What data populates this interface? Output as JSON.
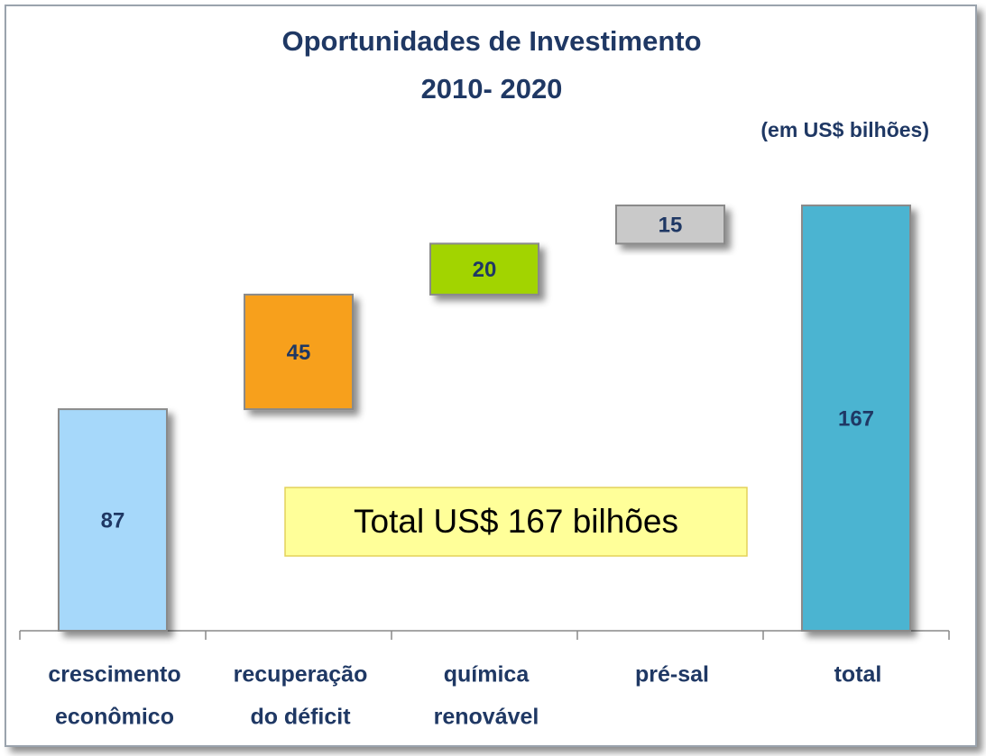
{
  "chart_data": {
    "type": "waterfall",
    "title": [
      "Oportunidades de Investimento",
      "2010- 2020"
    ],
    "subtitle": "(em US$ bilhões)",
    "categories": [
      [
        "crescimento",
        "econômico"
      ],
      [
        "recuperação",
        "do déficit"
      ],
      [
        "química",
        "renovável"
      ],
      [
        "pré-sal"
      ]
    ],
    "values": [
      87,
      45,
      20,
      15
    ],
    "colors": [
      "#a6d8fa",
      "#f7a01a",
      "#a2d400",
      "#c9c9c9"
    ],
    "total": {
      "category": [
        "total"
      ],
      "value": 167,
      "color": "#4bb4d1"
    },
    "annotation": "Total US$ 167 bilhões"
  }
}
